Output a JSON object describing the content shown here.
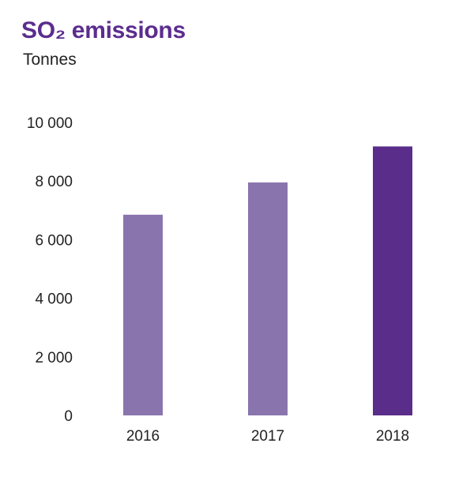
{
  "header": {
    "title": "SO₂ emissions",
    "subtitle": "Tonnes"
  },
  "colors": {
    "bar_light": "#8a74ad",
    "bar_highlight": "#5a2d8a",
    "title": "#5b2d8e"
  },
  "chart_data": {
    "type": "bar",
    "title": "SO₂ emissions",
    "subtitle": "Tonnes",
    "xlabel": "",
    "ylabel": "",
    "categories": [
      "2016",
      "2017",
      "2018"
    ],
    "values": [
      6850,
      7950,
      9180
    ],
    "highlight": [
      false,
      false,
      true
    ],
    "ylim": [
      0,
      10000
    ],
    "yticks": [
      0,
      2000,
      4000,
      6000,
      8000,
      10000
    ],
    "ytick_labels": [
      "0",
      "2 000",
      "4 000",
      "6 000",
      "8 000",
      "10 000"
    ],
    "grid": false,
    "legend": "none"
  }
}
